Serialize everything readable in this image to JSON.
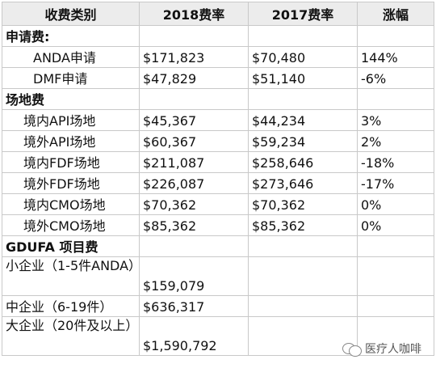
{
  "headers": [
    "收费类别",
    "2018费率",
    "2017费率",
    "涨幅"
  ],
  "rows": [
    {
      "cat": "申请费:",
      "y2018": "",
      "y2017": "",
      "change": ""
    },
    {
      "cat": "ANDA申请",
      "y2018": "$171,823",
      "y2017": "$70,480",
      "change": "144%"
    },
    {
      "cat": "DMF申请",
      "y2018": "$47,829",
      "y2017": "$51,140",
      "change": "-6%"
    },
    {
      "cat": "场地费",
      "y2018": "",
      "y2017": "",
      "change": ""
    },
    {
      "cat": "境内API场地",
      "y2018": "$45,367",
      "y2017": "$44,234",
      "change": "3%"
    },
    {
      "cat": "境外API场地",
      "y2018": "$60,367",
      "y2017": "$59,234",
      "change": "2%"
    },
    {
      "cat": "境内FDF场地",
      "y2018": "$211,087",
      "y2017": "$258,646",
      "change": "-18%"
    },
    {
      "cat": "境外FDF场地",
      "y2018": "$226,087",
      "y2017": "$273,646",
      "change": "-17%"
    },
    {
      "cat": "境内CMO场地",
      "y2018": "$70,362",
      "y2017": "$70,362",
      "change": "0%"
    },
    {
      "cat": "境外CMO场地",
      "y2018": "$85,362",
      "y2017": "$85,362",
      "change": "0%"
    },
    {
      "cat": "GDUFA 项目费",
      "y2018": "",
      "y2017": "",
      "change": ""
    },
    {
      "cat": "小企业（1-5件ANDA）",
      "y2018": "$159,079",
      "y2017": "",
      "change": ""
    },
    {
      "cat": "中企业（6-19件）",
      "y2018": "$636,317",
      "y2017": "",
      "change": ""
    },
    {
      "cat": "大企业（20件及以上）",
      "y2018": "$1,590,792",
      "y2017": "",
      "change": ""
    }
  ],
  "watermark": "医疗人咖啡"
}
